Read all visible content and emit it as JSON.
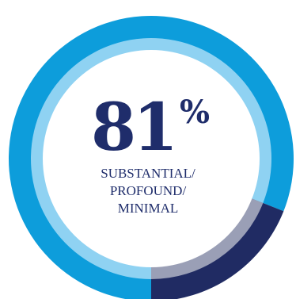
{
  "chart_data": {
    "type": "pie",
    "style": "donut",
    "values": [
      81,
      19
    ],
    "colors": {
      "outer_main": "#0d9ddb",
      "outer_remainder": "#202b63",
      "inner_main": "#8fd2f2",
      "inner_remainder": "#9a9fb6",
      "center_fill": "#ffffff",
      "text": "#1f2d6b"
    },
    "value_label": "81",
    "percent_sign": "%",
    "caption": [
      "SUBSTANTIAL/",
      "PROFOUND/",
      "MINIMAL"
    ]
  }
}
